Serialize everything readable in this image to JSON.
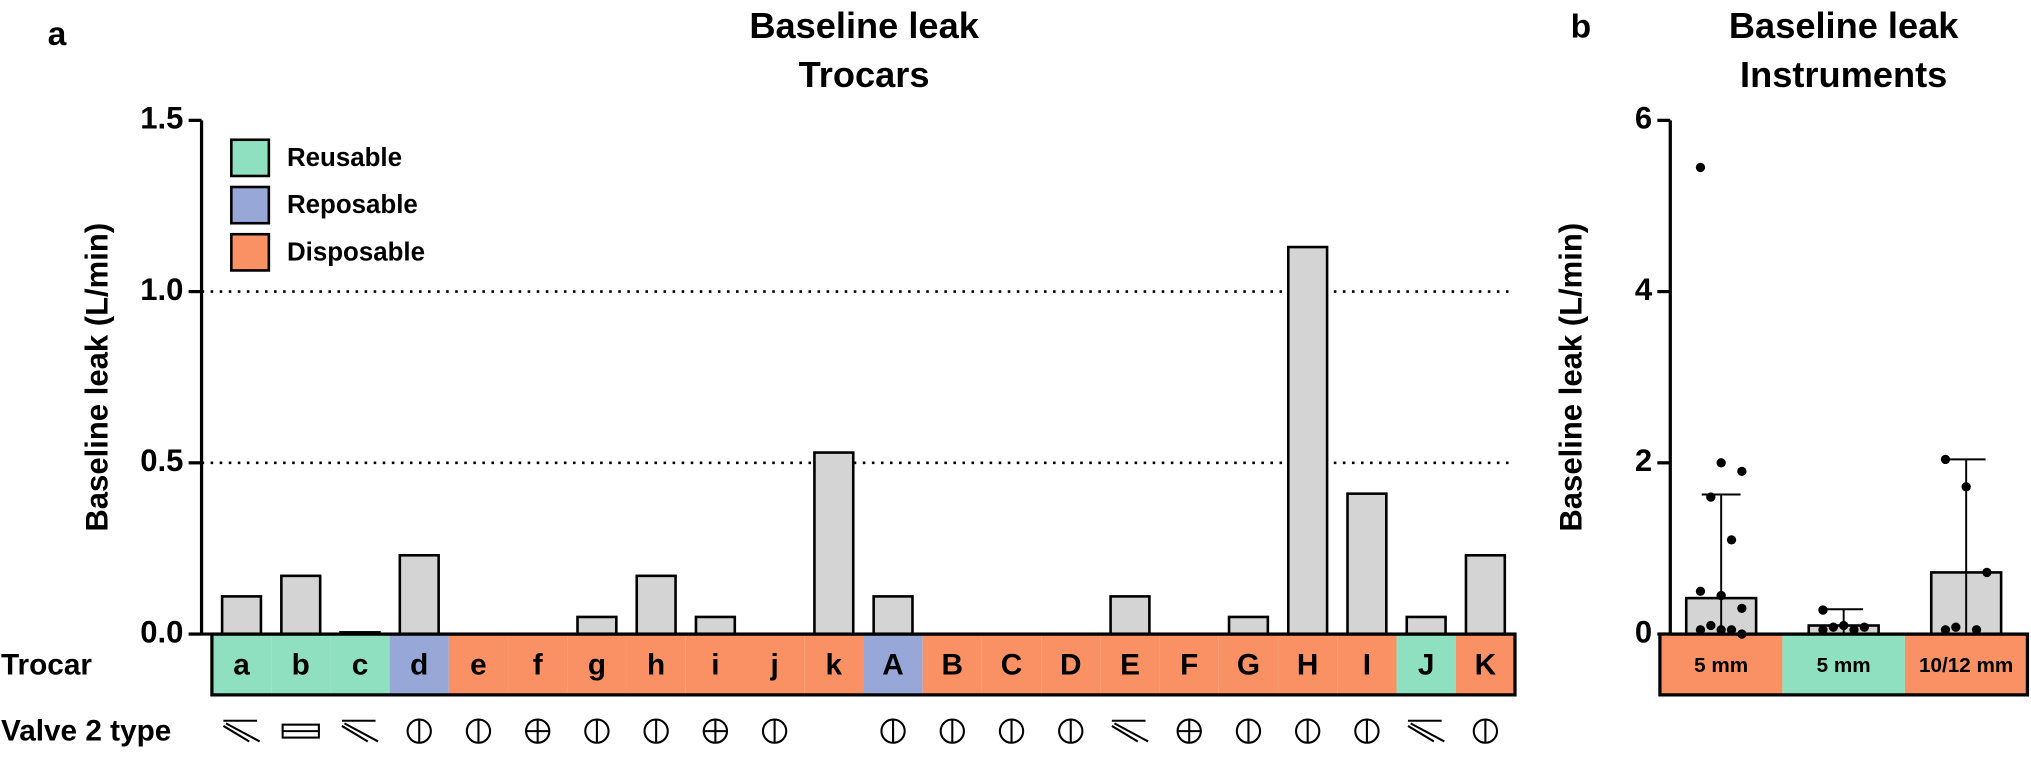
{
  "chart_data": [
    {
      "type": "bar",
      "panel_label": "a",
      "title": [
        "Baseline leak",
        "Trocars"
      ],
      "y_label": "Baseline leak (L/min)",
      "row_labels": [
        "Trocar",
        "Valve 2 type"
      ],
      "categories": [
        "a",
        "b",
        "c",
        "d",
        "e",
        "f",
        "g",
        "h",
        "i",
        "j",
        "k",
        "A",
        "B",
        "C",
        "D",
        "E",
        "F",
        "G",
        "H",
        "I",
        "J",
        "K"
      ],
      "values": [
        0.11,
        0.17,
        0.005,
        0.23,
        0,
        0,
        0.05,
        0.17,
        0.05,
        0,
        0.53,
        0.11,
        0,
        0,
        0,
        0.11,
        0,
        0.05,
        1.13,
        0.41,
        0.05,
        0.23
      ],
      "category_types": [
        0,
        0,
        0,
        1,
        2,
        2,
        2,
        2,
        2,
        2,
        2,
        1,
        2,
        2,
        2,
        2,
        2,
        2,
        2,
        2,
        0,
        2
      ],
      "legend": [
        {
          "name": "Reusable",
          "color": "#8ee0c0"
        },
        {
          "name": "Reposable",
          "color": "#97a7d8"
        },
        {
          "name": "Disposable",
          "color": "#f99164"
        }
      ],
      "legend_position": "upper left",
      "color": "#d4d4d4",
      "reference_lines": [
        0.5,
        1.0
      ],
      "ylim": [
        0,
        1.5
      ],
      "yticks": [
        {
          "value": 0,
          "label": "0.0"
        },
        0.5,
        {
          "value": 1.0,
          "label": "1.0"
        },
        {
          "value": 1.5,
          "label": "1.5"
        }
      ]
    },
    {
      "type": "bar_points",
      "panel_label": "b",
      "title": [
        "Baseline leak",
        "Instruments"
      ],
      "y_label": "Baseline leak (L/min)",
      "categories": [
        "5 mm",
        "5 mm",
        "10/12 mm"
      ],
      "category_colors": [
        "#f99164",
        "#8ee0c0",
        "#f99164"
      ],
      "values": [
        0.42,
        0.1,
        0.72
      ],
      "whisker_low": [
        0,
        0,
        0
      ],
      "whisker_high": [
        1.63,
        0.29,
        2.04
      ],
      "points": [
        [
          5.45,
          2.0,
          1.9,
          1.6,
          1.1,
          0.5,
          0.45,
          0.3,
          0.1,
          0.05,
          0.05,
          0.05,
          0
        ],
        [
          0.28,
          0.1,
          0.08,
          0.08,
          0.05,
          0.05
        ],
        [
          2.04,
          1.72,
          0.72,
          0.08,
          0.05,
          0.05
        ]
      ],
      "color": "#d4d4d4",
      "ylim": [
        0,
        6
      ],
      "yticks": [
        0,
        2,
        4,
        6
      ]
    }
  ]
}
